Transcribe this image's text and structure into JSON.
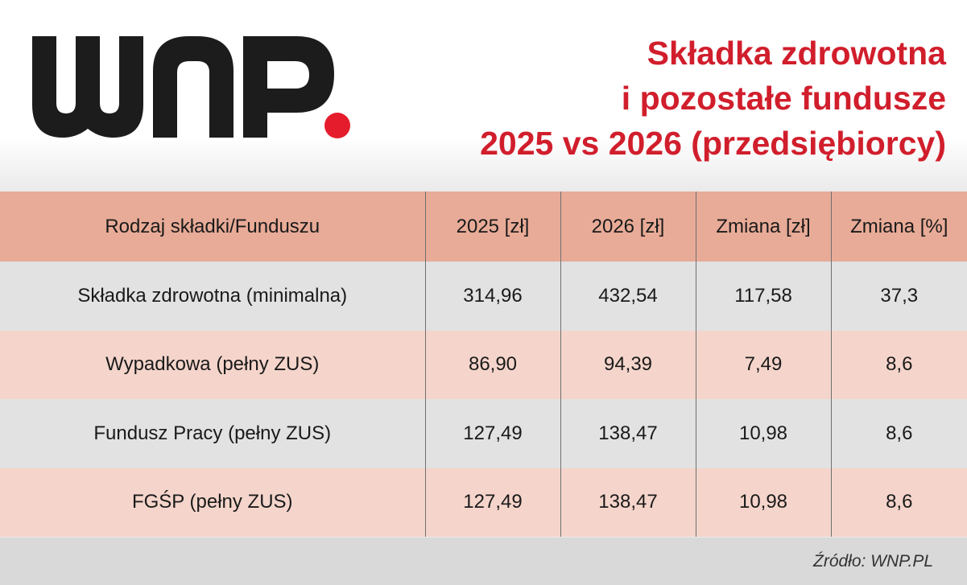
{
  "brand": {
    "logo_text": "WNP.",
    "logo_color": "#1c1c1c",
    "dot_color": "#e51c2c"
  },
  "title": {
    "line1": "Składka zdrowotna",
    "line2": "i pozostałe fundusze",
    "line3": "2025 vs 2026 (przedsiębiorcy)",
    "color": "#d11e2c"
  },
  "chart_data": {
    "type": "table",
    "columns": [
      "Rodzaj składki/Funduszu",
      "2025 [zł]",
      "2026 [zł]",
      "Zmiana [zł]",
      "Zmiana [%]"
    ],
    "rows": [
      [
        "Składka zdrowotna (minimalna)",
        "314,96",
        "432,54",
        "117,58",
        "37,3"
      ],
      [
        "Wypadkowa (pełny ZUS)",
        "86,90",
        "94,39",
        "7,49",
        "8,6"
      ],
      [
        "Fundusz Pracy (pełny ZUS)",
        "127,49",
        "138,47",
        "10,98",
        "8,6"
      ],
      [
        "FGŚP (pełny ZUS)",
        "127,49",
        "138,47",
        "10,98",
        "8,6"
      ]
    ],
    "header_color": "#e8ab97",
    "row_colors": [
      "#e2e2e2",
      "#f5d5cb",
      "#e2e2e2",
      "#f5d5cb"
    ]
  },
  "footer": {
    "source": "Źródło: WNP.PL"
  }
}
